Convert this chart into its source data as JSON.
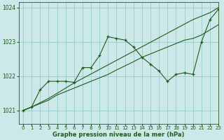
{
  "title": "Graphe pression niveau de la mer (hPa)",
  "bg_color": "#cce8e8",
  "grid_color": "#9ecece",
  "line_color": "#1e5c1e",
  "xlim": [
    -0.5,
    23
  ],
  "ylim": [
    1020.6,
    1024.15
  ],
  "yticks": [
    1021,
    1022,
    1023,
    1024
  ],
  "xticks": [
    0,
    1,
    2,
    3,
    4,
    5,
    6,
    7,
    8,
    9,
    10,
    11,
    12,
    13,
    14,
    15,
    16,
    17,
    18,
    19,
    20,
    21,
    22,
    23
  ],
  "s1_x": [
    0,
    1,
    2,
    3,
    4,
    5,
    6,
    7,
    8,
    9,
    10,
    11,
    12,
    13,
    14,
    15,
    16,
    17,
    18,
    19,
    20,
    21,
    22,
    23
  ],
  "s1_y": [
    1021.0,
    1021.1,
    1021.6,
    1021.85,
    1021.85,
    1021.85,
    1021.82,
    1022.25,
    1022.25,
    1022.6,
    1023.15,
    1023.1,
    1023.05,
    1022.85,
    1022.55,
    1022.35,
    1022.15,
    1021.85,
    1022.05,
    1022.1,
    1022.05,
    1023.0,
    1023.65,
    1023.95
  ],
  "s2_x": [
    0,
    1,
    3,
    4,
    5,
    6,
    20,
    21,
    22,
    23
  ],
  "s2_y": [
    1021.0,
    1021.1,
    1021.35,
    1021.5,
    1021.65,
    1021.8,
    1023.65,
    1023.75,
    1023.85,
    1024.0
  ],
  "s3_x": [
    0,
    1,
    2,
    3,
    4,
    5,
    6,
    7,
    8,
    9,
    10,
    11,
    12,
    13,
    14,
    15,
    16,
    17,
    18,
    19,
    20,
    21,
    22,
    23
  ],
  "s3_y": [
    1021.0,
    1021.1,
    1021.2,
    1021.3,
    1021.45,
    1021.55,
    1021.65,
    1021.75,
    1021.85,
    1021.95,
    1022.05,
    1022.18,
    1022.3,
    1022.42,
    1022.55,
    1022.65,
    1022.75,
    1022.85,
    1022.95,
    1023.05,
    1023.1,
    1023.2,
    1023.35,
    1023.5
  ]
}
